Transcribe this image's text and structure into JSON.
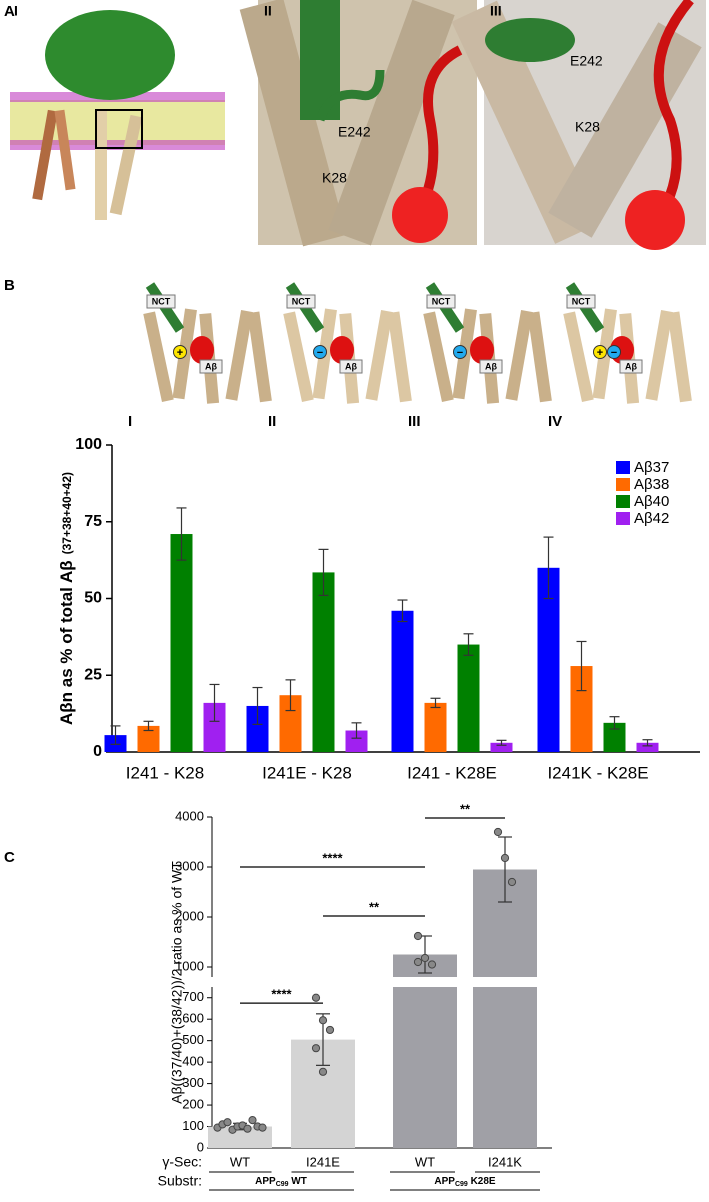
{
  "figure": {
    "panel_labels": [
      "A",
      "B",
      "C"
    ],
    "panel_a": {
      "numerals": [
        "I",
        "II",
        "III"
      ],
      "residues_ii": [
        "E242",
        "K28"
      ],
      "residues_iii": [
        "E242",
        "K28"
      ]
    },
    "panel_b": {
      "structures": [
        {
          "numeral": "I",
          "nct": "NCT",
          "abeta": "Aβ",
          "charges": [
            "+"
          ]
        },
        {
          "numeral": "II",
          "nct": "NCT",
          "abeta": "Aβ",
          "charges": [
            "−"
          ]
        },
        {
          "numeral": "III",
          "nct": "NCT",
          "abeta": "Aβ",
          "charges": [
            "−"
          ]
        },
        {
          "numeral": "IV",
          "nct": "NCT",
          "abeta": "Aβ",
          "charges": [
            "+",
            "−"
          ]
        }
      ]
    }
  },
  "chart_data": [
    {
      "type": "bar",
      "ylabel": "Aβn as % of total Aβ",
      "ylabel_sub": "(37+38+40+42)",
      "categories": [
        "I241 - K28",
        "I241E - K28",
        "I241 - K28E",
        "I241K - K28E"
      ],
      "series": [
        {
          "name": "Aβ37",
          "color": "#0000ff",
          "values": [
            5.5,
            15,
            46,
            60
          ],
          "errors": [
            3,
            6,
            3.5,
            10
          ]
        },
        {
          "name": "Aβ38",
          "color": "#ff6a00",
          "values": [
            8.5,
            18.5,
            16,
            28
          ],
          "errors": [
            1.5,
            5,
            1.5,
            8
          ]
        },
        {
          "name": "Aβ40",
          "color": "#008000",
          "values": [
            71,
            58.5,
            35,
            9.5
          ],
          "errors": [
            8.5,
            7.5,
            3.5,
            2
          ]
        },
        {
          "name": "Aβ42",
          "color": "#a020f0",
          "values": [
            16,
            7,
            3,
            3
          ],
          "errors": [
            6,
            2.5,
            0.8,
            1
          ]
        }
      ],
      "ylim": [
        0,
        100
      ],
      "yticks": [
        0,
        25,
        50,
        75,
        100
      ],
      "legend": "top-right"
    },
    {
      "type": "broken-bar",
      "ylabel": "Aβ((37/40)+(38/42))/2 ratio as % of WT",
      "row_labels": [
        "γ-Sec:",
        "Substr:"
      ],
      "categories": [
        "WT",
        "I241E",
        "WT",
        "I241K"
      ],
      "groups": [
        {
          "text": "APP",
          "sub": "C99",
          "rest": " WT"
        },
        {
          "text": "APP",
          "sub": "C99",
          "rest": " K28E"
        }
      ],
      "colors": [
        "#d4d4d4",
        "#d4d4d4",
        "#a0a0a6",
        "#a0a0a6"
      ],
      "values": [
        100,
        505,
        1250,
        2950
      ],
      "errors": [
        15,
        120,
        370,
        650
      ],
      "points": [
        [
          95,
          110,
          120,
          85,
          100,
          105,
          90,
          130,
          100,
          95
        ],
        [
          700,
          595,
          550,
          465,
          355
        ],
        [
          1620,
          1180,
          1050,
          1100
        ],
        [
          3700,
          3180,
          2700
        ]
      ],
      "ylim_lower": [
        0,
        750
      ],
      "yticks_lower": [
        0,
        100,
        200,
        300,
        400,
        500,
        600,
        700
      ],
      "ylim_upper": [
        800,
        4000
      ],
      "yticks_upper": [
        1000,
        2000,
        3000,
        4000
      ],
      "comparisons": [
        {
          "bars": [
            0,
            1
          ],
          "y": 675,
          "label": "****"
        },
        {
          "bars": [
            1,
            2
          ],
          "y": 2020,
          "label": "**"
        },
        {
          "bars": [
            0,
            2
          ],
          "y": 3000,
          "label": "****"
        },
        {
          "bars": [
            2,
            3
          ],
          "y": 3980,
          "label": "**"
        }
      ]
    }
  ]
}
